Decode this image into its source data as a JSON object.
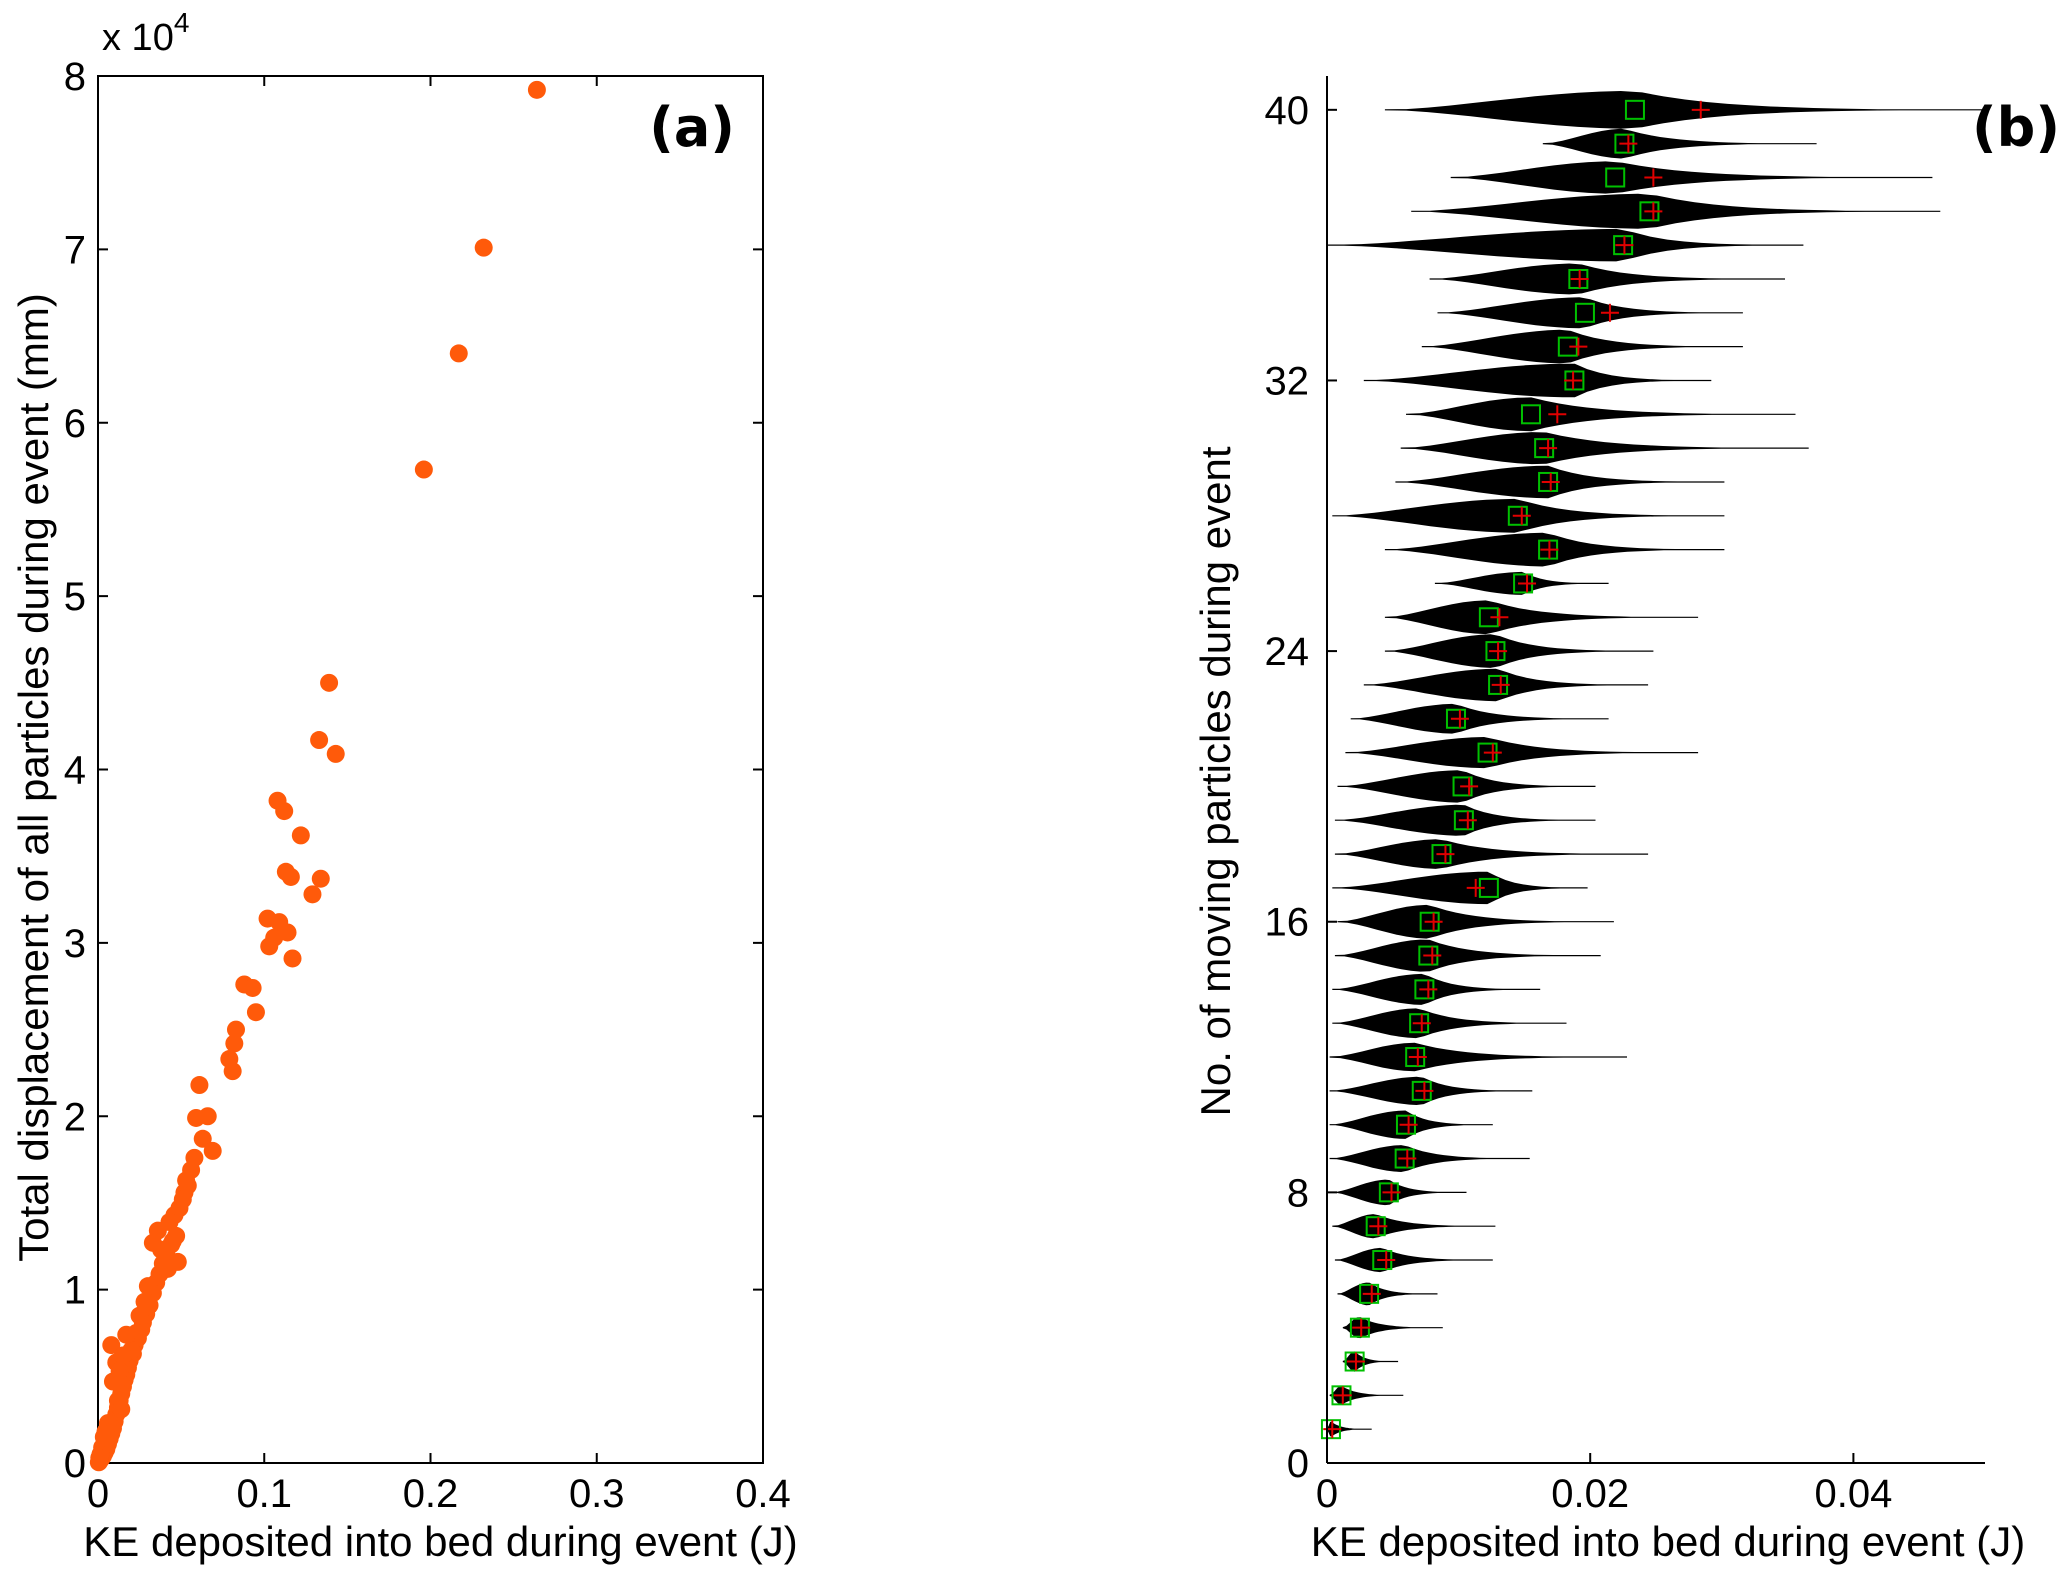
{
  "chart_data": [
    {
      "type": "scatter",
      "panel_label": "(a)",
      "xlabel": "KE deposited into bed during event (J)",
      "ylabel": "Total displacement of all particles during event (mm)",
      "xlim": [
        0,
        0.4
      ],
      "ylim": [
        0,
        80000
      ],
      "xticks": [
        0,
        0.1,
        0.2,
        0.3,
        0.4
      ],
      "xtick_labels": [
        "0",
        "0.1",
        "0.2",
        "0.3",
        "0.4"
      ],
      "yticks": [
        0,
        10000,
        20000,
        30000,
        40000,
        50000,
        60000,
        70000,
        80000
      ],
      "ytick_labels": [
        "0",
        "1",
        "2",
        "3",
        "4",
        "5",
        "6",
        "7",
        "8"
      ],
      "y_exponent_prefix": "x 10",
      "y_exponent_power": "4",
      "marker_color": "#ff5a0a",
      "grid": false,
      "series": [
        {
          "x": [
            0.264,
            0.232,
            0.217,
            0.196,
            0.139,
            0.143,
            0.133,
            0.108,
            0.112,
            0.122,
            0.113,
            0.116,
            0.134,
            0.129,
            0.102,
            0.109,
            0.106,
            0.103,
            0.114,
            0.117,
            0.088,
            0.093,
            0.095,
            0.082,
            0.079,
            0.083,
            0.081,
            0.061,
            0.059,
            0.066,
            0.063,
            0.069,
            0.058,
            0.056,
            0.053,
            0.052,
            0.049,
            0.046,
            0.043,
            0.051,
            0.054,
            0.047,
            0.044,
            0.041,
            0.039,
            0.037,
            0.035,
            0.033,
            0.031,
            0.029,
            0.027,
            0.026,
            0.024,
            0.022,
            0.021,
            0.019,
            0.018,
            0.017,
            0.016,
            0.015,
            0.014,
            0.013,
            0.012,
            0.011,
            0.01,
            0.009,
            0.008,
            0.007,
            0.006,
            0.005,
            0.004,
            0.003,
            0.002,
            0.001,
            0.0005,
            0.011,
            0.009,
            0.008,
            0.012,
            0.014,
            0.036,
            0.038,
            0.042,
            0.045,
            0.048,
            0.033,
            0.03,
            0.028,
            0.025,
            0.023,
            0.02,
            0.017,
            0.015,
            0.013,
            0.006,
            0.0045,
            0.0035,
            0.0025,
            0.0015,
            0.0008
          ],
          "y": [
            79200,
            70100,
            64000,
            57300,
            45000,
            40900,
            41700,
            38200,
            37600,
            36200,
            34100,
            33800,
            33700,
            32800,
            31400,
            31200,
            30300,
            29800,
            30600,
            29100,
            27600,
            27400,
            26000,
            24200,
            23300,
            25000,
            22600,
            21800,
            19900,
            20000,
            18700,
            18000,
            17600,
            16900,
            16300,
            15600,
            14700,
            14300,
            13900,
            15200,
            16000,
            13100,
            12600,
            12100,
            11500,
            10900,
            10400,
            9800,
            9100,
            8600,
            8100,
            7700,
            7200,
            6800,
            6300,
            5900,
            5500,
            5100,
            4800,
            4400,
            4000,
            3600,
            3200,
            2800,
            2400,
            2000,
            1700,
            1400,
            1100,
            800,
            600,
            400,
            250,
            120,
            40,
            5800,
            4700,
            6800,
            3600,
            3100,
            13400,
            12300,
            11200,
            12800,
            11600,
            12700,
            10200,
            9300,
            8500,
            7500,
            6500,
            7400,
            6200,
            5300,
            2300,
            1800,
            1500,
            900,
            500,
            300
          ]
        }
      ]
    },
    {
      "type": "violin",
      "panel_label": "(b)",
      "xlabel": "KE deposited into bed during event (J)",
      "ylabel": "No. of moving particles during event",
      "xlim": [
        0,
        0.05
      ],
      "ylim": [
        0,
        41
      ],
      "xticks": [
        0,
        0.02,
        0.04
      ],
      "xtick_labels": [
        "0",
        "0.02",
        "0.04"
      ],
      "yticks": [
        0,
        8,
        16,
        24,
        32,
        40
      ],
      "ytick_labels": [
        "0",
        "8",
        "16",
        "24",
        "32",
        "40"
      ],
      "violin_color": "#000000",
      "median_marker_color": "#00c000",
      "mean_marker_color": "#e00000",
      "grid": false,
      "categories": [
        1,
        2,
        3,
        4,
        5,
        6,
        7,
        8,
        9,
        10,
        11,
        12,
        13,
        14,
        15,
        16,
        17,
        18,
        19,
        20,
        21,
        22,
        23,
        24,
        25,
        26,
        27,
        28,
        29,
        30,
        31,
        32,
        33,
        34,
        35,
        36,
        37,
        38,
        39,
        40
      ],
      "medians": [
        0.0003,
        0.0011,
        0.0021,
        0.0025,
        0.0032,
        0.0042,
        0.0037,
        0.0047,
        0.0059,
        0.006,
        0.0072,
        0.0067,
        0.007,
        0.0074,
        0.0077,
        0.0078,
        0.0123,
        0.0087,
        0.0104,
        0.0103,
        0.0122,
        0.0098,
        0.013,
        0.0128,
        0.0123,
        0.0149,
        0.0168,
        0.0145,
        0.0168,
        0.0165,
        0.0155,
        0.0188,
        0.0183,
        0.0196,
        0.0191,
        0.0225,
        0.0245,
        0.0219,
        0.0226,
        0.0234
      ],
      "means": [
        0.0004,
        0.0012,
        0.0022,
        0.0026,
        0.0034,
        0.0045,
        0.0039,
        0.0049,
        0.0061,
        0.0062,
        0.0074,
        0.0069,
        0.0072,
        0.0077,
        0.008,
        0.0081,
        0.0113,
        0.009,
        0.0107,
        0.0108,
        0.0126,
        0.0101,
        0.0132,
        0.013,
        0.0131,
        0.0152,
        0.0169,
        0.0148,
        0.017,
        0.0168,
        0.0175,
        0.0187,
        0.0191,
        0.0215,
        0.0192,
        0.0226,
        0.0248,
        0.0248,
        0.0229,
        0.0284
      ],
      "x_min": [
        0,
        0.0002,
        0.0012,
        0.0012,
        0.0008,
        0.0006,
        0.0004,
        0.0004,
        0.0002,
        0.0002,
        0.0002,
        0.0002,
        0.0004,
        0.0004,
        0.0006,
        0.0008,
        0.0004,
        0.0006,
        0.0006,
        0.0008,
        0.0014,
        0.0018,
        0.0028,
        0.0044,
        0.0044,
        0.0082,
        0.0044,
        0.0004,
        0.0052,
        0.0056,
        0.006,
        0.0028,
        0.0072,
        0.0084,
        0.0078,
        0.0,
        0.0064,
        0.0094,
        0.0164,
        0.0044
      ],
      "x_max": [
        0.0034,
        0.0058,
        0.0054,
        0.0088,
        0.0084,
        0.0126,
        0.0128,
        0.0106,
        0.0154,
        0.0126,
        0.0156,
        0.0228,
        0.0182,
        0.0162,
        0.0208,
        0.0218,
        0.0198,
        0.0244,
        0.0204,
        0.0204,
        0.0282,
        0.0214,
        0.0244,
        0.0248,
        0.0282,
        0.0214,
        0.0302,
        0.0302,
        0.0302,
        0.0366,
        0.0356,
        0.0292,
        0.0316,
        0.0316,
        0.0348,
        0.0362,
        0.0466,
        0.046,
        0.0372,
        0.05
      ],
      "max_half_width": [
        0.23,
        0.28,
        0.3,
        0.32,
        0.34,
        0.36,
        0.36,
        0.38,
        0.4,
        0.42,
        0.42,
        0.42,
        0.44,
        0.46,
        0.48,
        0.5,
        0.48,
        0.44,
        0.46,
        0.48,
        0.46,
        0.44,
        0.48,
        0.5,
        0.5,
        0.34,
        0.5,
        0.5,
        0.48,
        0.48,
        0.5,
        0.5,
        0.5,
        0.46,
        0.46,
        0.48,
        0.52,
        0.48,
        0.44,
        0.56
      ]
    }
  ]
}
